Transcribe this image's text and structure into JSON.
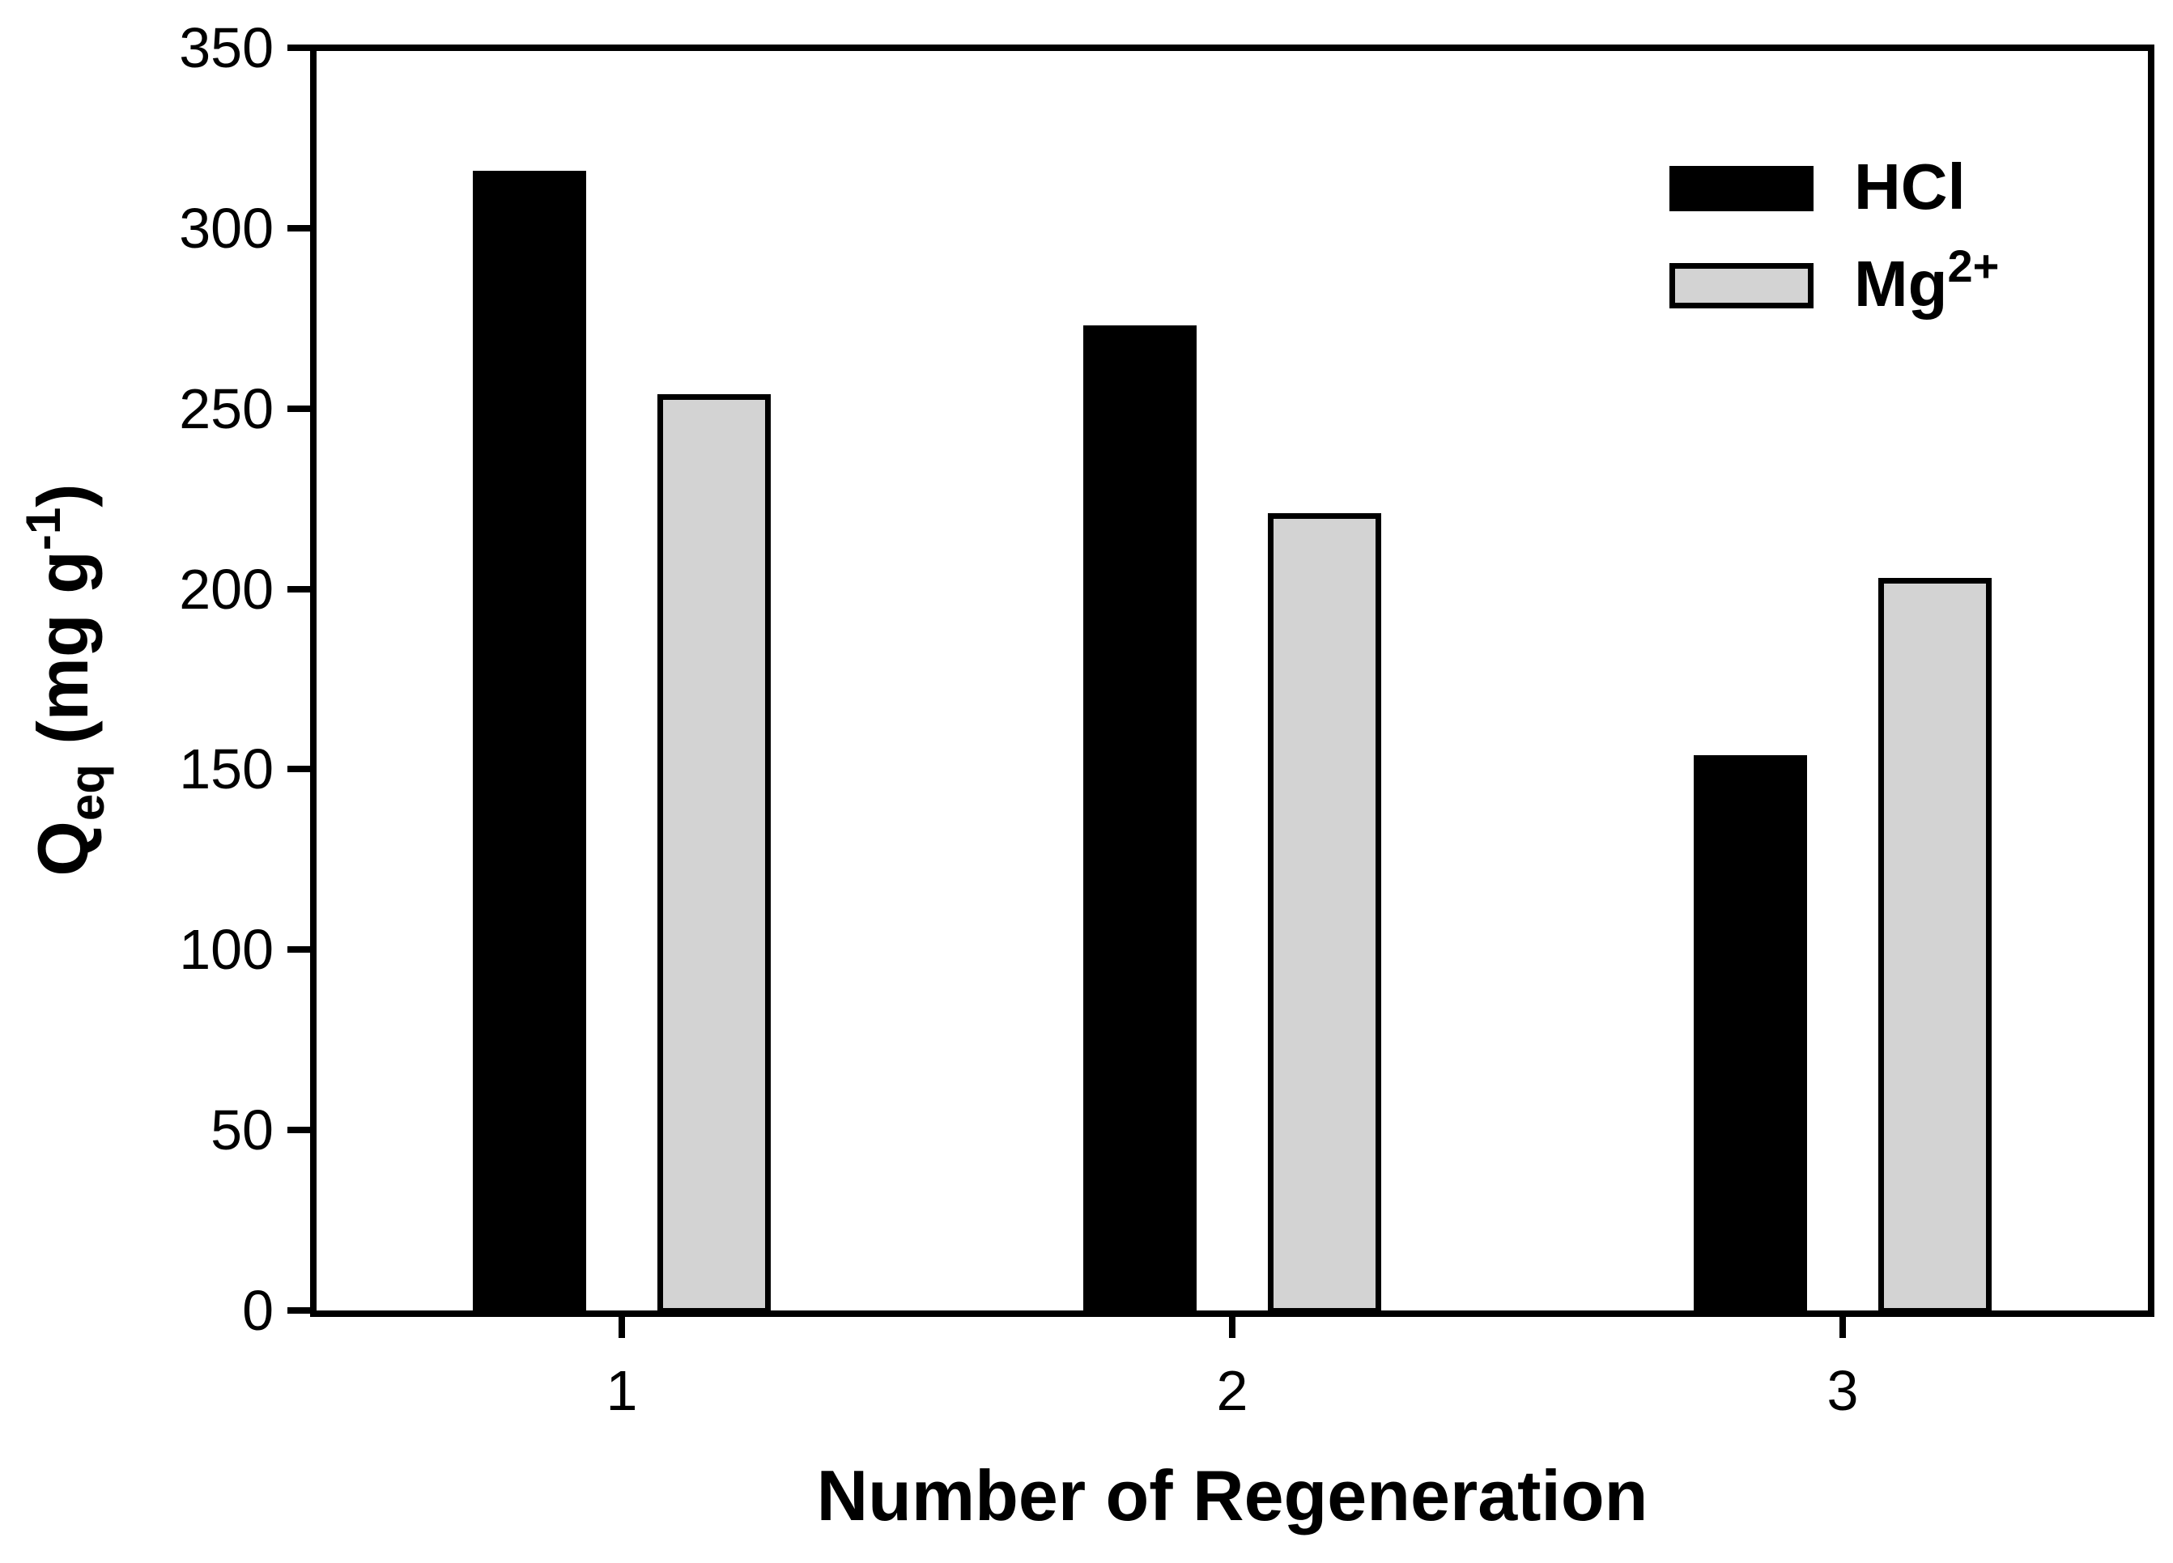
{
  "figure": {
    "background": "#ffffff",
    "axis_color": "#000000"
  },
  "chart_data": {
    "type": "bar",
    "title": "",
    "categories": [
      "1",
      "2",
      "3"
    ],
    "series": [
      {
        "name": "HCl",
        "label": "HCl",
        "label_sup": "",
        "fill": "#000000",
        "stroke": "#000000",
        "values": [
          316,
          273,
          154
        ]
      },
      {
        "name": "Mg",
        "label": "Mg",
        "label_sup": "2+",
        "fill": "#d3d3d3",
        "stroke": "#000000",
        "values": [
          254,
          221,
          203
        ]
      }
    ],
    "xlabel": "Number of Regeneration",
    "ylabel_parts": {
      "base": "Q",
      "sub": "eq",
      "mid": " (mg g",
      "sup": "-1",
      "end": ")"
    },
    "ylim": [
      0,
      350
    ],
    "ytick_step": 50,
    "ytick_labels": [
      "0",
      "50",
      "100",
      "150",
      "200",
      "250",
      "300",
      "350"
    ],
    "grid": false,
    "legend_position": "top-right-inside"
  }
}
